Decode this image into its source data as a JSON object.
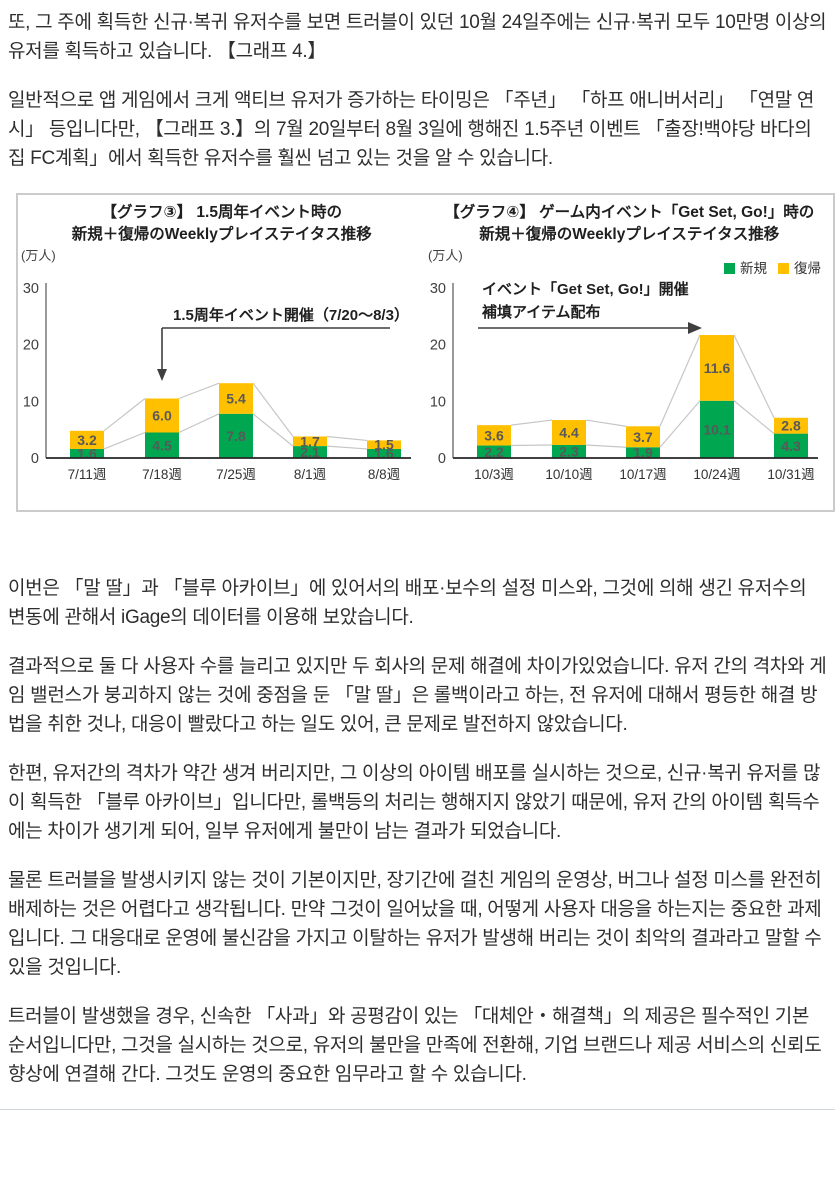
{
  "article": {
    "paragraphs": [
      "또, 그 주에 획득한 신규·복귀 유저수를 보면 트러블이 있던 10월 24일주에는 신규·복귀 모두 10만명 이상의 유저를 획득하고 있습니다. 【그래프 4.】",
      "일반적으로 앱 게임에서 크게 액티브 유저가 증가하는 타이밍은 「주년」 「하프 애니버서리」 「연말 연시」 등입니다만, 【그래프 3.】의 7월 20일부터 8월 3일에 행해진 1.5주년 이벤트 「출장!백야당 바다의 집 FC계획」에서 획득한 유저수를 훨씬 넘고 있는 것을 알 수 있습니다.",
      "이번은 「말 딸」과 「블루 아카이브」에 있어서의 배포·보수의 설정 미스와, 그것에 의해 생긴 유저수의 변동에 관해서 iGage의 데이터를 이용해 보았습니다.",
      "결과적으로 둘 다 사용자 수를 늘리고 있지만 두 회사의 문제 해결에 차이가있었습니다. 유저 간의 격차와 게임 밸런스가 붕괴하지 않는 것에 중점을 둔 「말 딸」은 롤백이라고 하는, 전 유저에 대해서 평등한 해결 방법을 취한 것나, 대응이 빨랐다고 하는 일도 있어, 큰 문제로 발전하지 않았습니다.",
      "한편, 유저간의 격차가 약간 생겨 버리지만, 그 이상의 아이템 배포를 실시하는 것으로, 신규·복귀 유저를 많이 획득한 「블루 아카이브」입니다만, 롤백등의 처리는 행해지지 않았기 때문에, 유저 간의 아이템 획득수에는 차이가 생기게 되어, 일부 유저에게 불만이 남는 결과가 되었습니다.",
      "물론 트러블을 발생시키지 않는 것이 기본이지만, 장기간에 걸친 게임의 운영상, 버그나 설정 미스를 완전히 배제하는 것은 어렵다고 생각됩니다. 만약 그것이 일어났을 때, 어떻게 사용자 대응을 하는지는 중요한 과제입니다. 그 대응대로 운영에 불신감을 가지고 이탈하는 유저가 발생해 버리는 것이 최악의 결과라고 말할 수 있을 것입니다.",
      "트러블이 발생했을 경우, 신속한 「사과」와 공평감이 있는 「대체안・해결책」의 제공은 필수적인 기본 순서입니다만, 그것을 실시하는 것으로, 유저의 불만을 만족에 전환해, 기업 브랜드나 제공 서비스의 신뢰도 향상에 연결해 간다. 그것도 운영의 중요한 임무라고 할 수 있습니다."
    ]
  },
  "colors": {
    "new_user_green": "#00A650",
    "return_user_yellow": "#FFC000",
    "data_label_gray": "#595959",
    "series_line_gray": "#c6c6c6",
    "annotation_dark": "#3f3f3f"
  },
  "chart_data": [
    {
      "type": "bar",
      "stacked": true,
      "title_line1": "【グラフ③】 1.5周年イベント時の",
      "title_line2": "新規＋復帰のWeeklyプレイステイタス推移",
      "unit": "(万人)",
      "categories": [
        "7/11週",
        "7/18週",
        "7/25週",
        "8/1週",
        "8/8週"
      ],
      "series": [
        {
          "name": "新規",
          "color": "#00A650",
          "values": [
            1.6,
            4.5,
            7.8,
            2.1,
            1.6
          ],
          "labels": [
            "1.6",
            "4.5",
            "7.8",
            "2.1",
            "1.6"
          ]
        },
        {
          "name": "復帰",
          "color": "#FFC000",
          "values": [
            3.2,
            6.0,
            5.4,
            1.7,
            1.5
          ],
          "labels": [
            "3.2",
            "6.0",
            "5.4",
            "1.7",
            "1.5"
          ]
        }
      ],
      "ylim": [
        0,
        30
      ],
      "yticks": [
        0,
        10,
        20,
        30
      ],
      "grid": false,
      "legend": false,
      "annotation": {
        "type": "bracket-down",
        "lines": [
          "1.5周年イベント開催（7/20～8/3）"
        ],
        "target_index": 1
      }
    },
    {
      "type": "bar",
      "stacked": true,
      "title_line1": "【グラフ④】 ゲーム内イベント「Get Set, Go!」時の",
      "title_line2": "新規＋復帰のWeeklyプレイステイタス推移",
      "unit": "(万人)",
      "categories": [
        "10/3週",
        "10/10週",
        "10/17週",
        "10/24週",
        "10/31週"
      ],
      "series": [
        {
          "name": "新規",
          "color": "#00A650",
          "values": [
            2.2,
            2.3,
            1.9,
            10.1,
            4.3
          ],
          "labels": [
            "2.2",
            "2.3",
            "1.9",
            "10.1",
            "4.3"
          ]
        },
        {
          "name": "復帰",
          "color": "#FFC000",
          "values": [
            3.6,
            4.4,
            3.7,
            11.6,
            2.8
          ],
          "labels": [
            "3.6",
            "4.4",
            "3.7",
            "11.6",
            "2.8"
          ]
        }
      ],
      "ylim": [
        0,
        30
      ],
      "yticks": [
        0,
        10,
        20,
        30
      ],
      "grid": false,
      "legend": true,
      "legend_position": "top-right",
      "annotation": {
        "type": "arrow-right",
        "lines": [
          "イベント「Get Set, Go!」開催",
          "補填アイテム配布"
        ],
        "target_index": 3
      }
    }
  ]
}
